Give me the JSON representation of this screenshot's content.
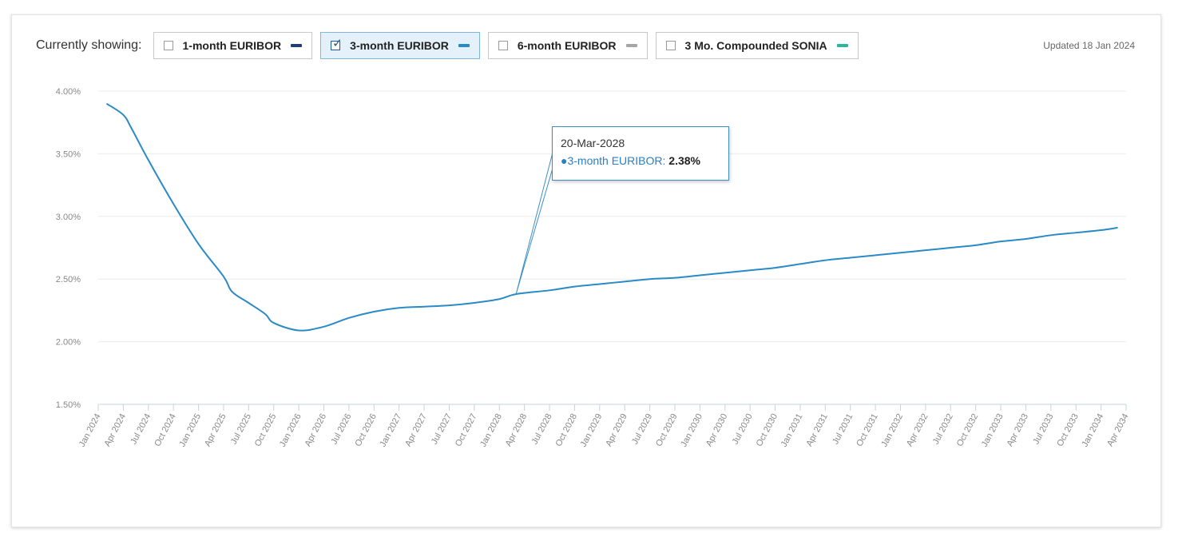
{
  "toolbar": {
    "currently_showing": "Currently showing:",
    "updated": "Updated 18 Jan 2024"
  },
  "series_toggles": [
    {
      "label": "1-month EURIBOR",
      "checked": false,
      "color": "#1f3d7a"
    },
    {
      "label": "3-month EURIBOR",
      "checked": true,
      "color": "#2a8ac6"
    },
    {
      "label": "6-month EURIBOR",
      "checked": false,
      "color": "#a6a6a6"
    },
    {
      "label": "3 Mo. Compounded SONIA",
      "checked": false,
      "color": "#2bb5a0"
    }
  ],
  "tooltip": {
    "date": "20-Mar-2028",
    "series": "3-month EURIBOR:",
    "value": "2.38%"
  },
  "chart_data": {
    "type": "line",
    "ylim": [
      1.5,
      4.0
    ],
    "yticks": [
      "1.50%",
      "2.00%",
      "2.50%",
      "3.00%",
      "3.50%",
      "4.00%"
    ],
    "ytick_values": [
      1.5,
      2.0,
      2.5,
      3.0,
      3.5,
      4.0
    ],
    "xticks": [
      "Jan 2024",
      "Apr 2024",
      "Jul 2024",
      "Oct 2024",
      "Jan 2025",
      "Apr 2025",
      "Jul 2025",
      "Oct 2025",
      "Jan 2026",
      "Apr 2026",
      "Jul 2026",
      "Oct 2026",
      "Jan 2027",
      "Apr 2027",
      "Jul 2027",
      "Oct 2027",
      "Jan 2028",
      "Apr 2028",
      "Jul 2028",
      "Oct 2028",
      "Jan 2029",
      "Apr 2029",
      "Jul 2029",
      "Oct 2029",
      "Jan 2030",
      "Apr 2030",
      "Jul 2030",
      "Oct 2030",
      "Jan 2031",
      "Apr 2031",
      "Jul 2031",
      "Oct 2031",
      "Jan 2032",
      "Apr 2032",
      "Jul 2032",
      "Oct 2032",
      "Jan 2033",
      "Apr 2033",
      "Jul 2033",
      "Oct 2033",
      "Jan 2034",
      "Apr 2034"
    ],
    "grid": true,
    "series": [
      {
        "name": "3-month EURIBOR",
        "color": "#2a8ac6",
        "x": [
          "Feb 2024",
          "Apr 2024",
          "May 2024",
          "Jul 2024",
          "Oct 2024",
          "Jan 2025",
          "Apr 2025",
          "May 2025",
          "Jul 2025",
          "Sep 2025",
          "Oct 2025",
          "Jan 2026",
          "Apr 2026",
          "Jul 2026",
          "Oct 2026",
          "Jan 2027",
          "Apr 2027",
          "Jul 2027",
          "Oct 2027",
          "Jan 2028",
          "Mar 2028",
          "Jul 2028",
          "Oct 2028",
          "Jan 2029",
          "Apr 2029",
          "Jul 2029",
          "Oct 2029",
          "Jan 2030",
          "Apr 2030",
          "Jul 2030",
          "Oct 2030",
          "Jan 2031",
          "Apr 2031",
          "Jul 2031",
          "Oct 2031",
          "Jan 2032",
          "Apr 2032",
          "Jul 2032",
          "Oct 2032",
          "Jan 2033",
          "Apr 2033",
          "Jul 2033",
          "Oct 2033",
          "Jan 2034",
          "Mar 2034"
        ],
        "values": [
          3.9,
          3.81,
          3.7,
          3.45,
          3.1,
          2.78,
          2.52,
          2.4,
          2.31,
          2.22,
          2.15,
          2.09,
          2.12,
          2.19,
          2.24,
          2.27,
          2.28,
          2.29,
          2.31,
          2.34,
          2.38,
          2.41,
          2.44,
          2.46,
          2.48,
          2.5,
          2.51,
          2.53,
          2.55,
          2.57,
          2.59,
          2.62,
          2.65,
          2.67,
          2.69,
          2.71,
          2.73,
          2.75,
          2.77,
          2.8,
          2.82,
          2.85,
          2.87,
          2.89,
          2.91
        ]
      }
    ]
  }
}
